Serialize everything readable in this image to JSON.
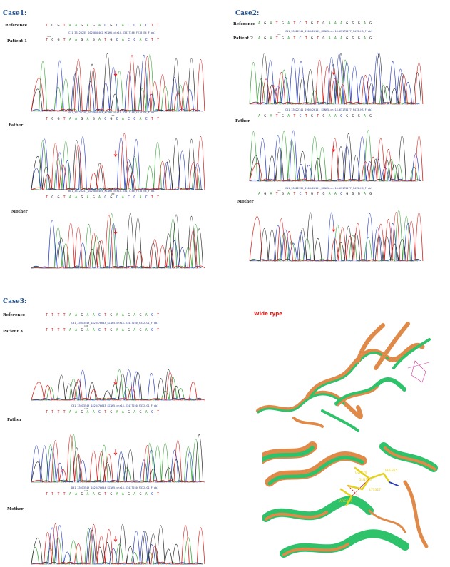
{
  "cases": [
    {
      "title": "Case1:",
      "rows": [
        {
          "label": "Reference",
          "seq": "TGGTAAGAGACGCACCACTT"
        },
        {
          "label": "Patient 1",
          "file": "C11_33125255_2023050462_KCNH5-chr14-63417246_F618-E4_F.ab1",
          "seq": "TGGTAAGAGATGCACCACTT",
          "pos": "100"
        },
        {
          "label": "Father",
          "file": "A01_33126259_2023050464_KCNH5-chr14-63417246_F618-E4_F.ab1",
          "seq": "TGGTAAGAGACGCACCACTT",
          "pos": "100"
        },
        {
          "label": "Mother",
          "file": "B01_33126257_2023050465_KCNH5-chr14-63417246_F618-E4_F.ab1",
          "seq": "TGGTAAGAGACGCACCACTT",
          "pos": "100"
        }
      ]
    },
    {
      "title": "Case2:",
      "rows": [
        {
          "label": "Reference",
          "seq": "AGATGATCTGTGAAAGGGAG"
        },
        {
          "label": "Patient 2",
          "file": "C11_33622141_1903426145_KCNH5-chr14-63175177_F413-HS_F.ab1",
          "seq": "AGATGATCTGTGAAAGGGAG",
          "pos": "100"
        },
        {
          "label": "Father",
          "file": "C11_33622141_1903426151_KCNH5-chr14-63175177_F413-HS_F.ab1",
          "seq": "AGATGATCTGTGAACGGGAG",
          "pos": "100"
        },
        {
          "label": "Mother",
          "file": "C11_33622139_1903426151_KCNH5-chr14-63175177_F413-HS_F.ab1",
          "seq": "AGATGATCTGTGAACGGGAG",
          "pos": "100"
        }
      ]
    },
    {
      "title": "Case3:",
      "rows": [
        {
          "label": "Reference",
          "seq": "TTTTAAGAACTGAAGAGACT"
        },
        {
          "label": "Patient 3",
          "file": "C01_33013549_1823476643_KCNH5-chr14-63417250_F332-G1_F.ab1",
          "seq": "TTTTAAGAACTGAAGAGACT",
          "pos": "100"
        },
        {
          "label": "Father",
          "file": "C01_33013549_1823476643_KCNH5-chr14-63417250_F332-G1_F.ab1",
          "seq": "TTTTAAGAACTGAAGAGACT",
          "pos": "100"
        },
        {
          "label": "Mother",
          "file": "D01_33013549_1823476644_KCNH5-chr14-63417250_F332-G1_F.ab1",
          "seq": "TTTTAAGAAGTGAAGAGACT",
          "pos": "100"
        }
      ]
    }
  ],
  "wide_type": {
    "title": "Wide type",
    "residue_labels": [
      "GLY329",
      "GLN328",
      "LYS327",
      "PHE325",
      "ARG330"
    ]
  },
  "colors": {
    "A": "#3aa63a",
    "C": "#2b3fc4",
    "G": "#333333",
    "T": "#d9211e",
    "arrow": "#e02020",
    "title": "#1f4e8c"
  }
}
